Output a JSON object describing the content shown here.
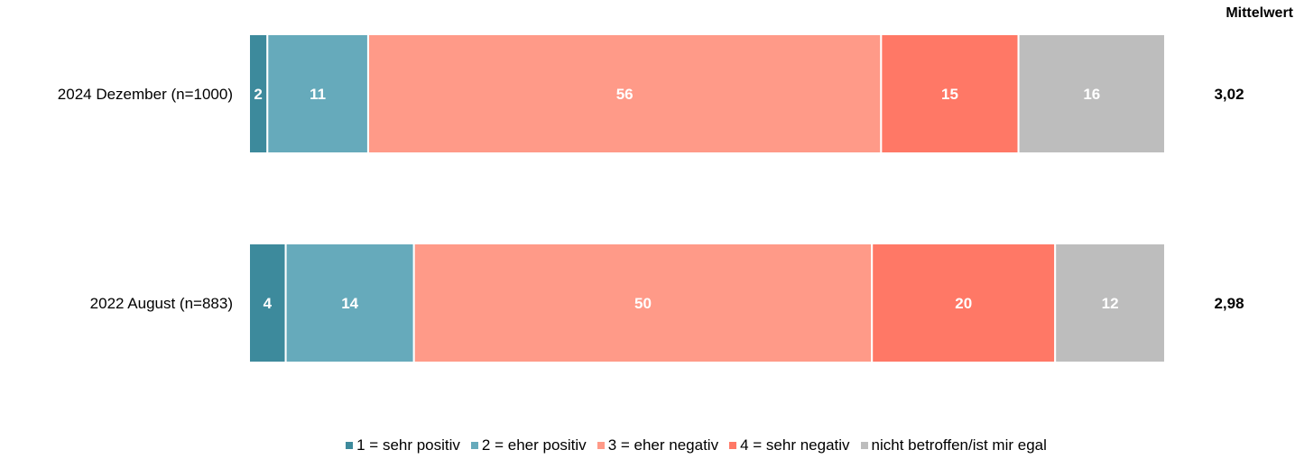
{
  "chart_data": {
    "type": "bar",
    "orientation": "horizontal",
    "stacked": true,
    "categories": [
      "2024 Dezember (n=1000)",
      "2022 August (n=883)"
    ],
    "series": [
      {
        "name": "1 = sehr positiv",
        "color": "#3d8a9c",
        "values": [
          2,
          4
        ]
      },
      {
        "name": "2 = eher positiv",
        "color": "#66aabb",
        "values": [
          11,
          14
        ]
      },
      {
        "name": "3 = eher negativ",
        "color": "#ff9a88",
        "values": [
          56,
          50
        ]
      },
      {
        "name": "4 = sehr negativ",
        "color": "#ff7866",
        "values": [
          15,
          20
        ]
      },
      {
        "name": "nicht betroffen/ist mir egal",
        "color": "#bdbdbd",
        "values": [
          16,
          12
        ]
      }
    ],
    "mean_header": "Mittelwert",
    "means": [
      "3,02",
      "2,98"
    ],
    "xlim": [
      0,
      100
    ],
    "grid": false,
    "legend_position": "bottom"
  }
}
